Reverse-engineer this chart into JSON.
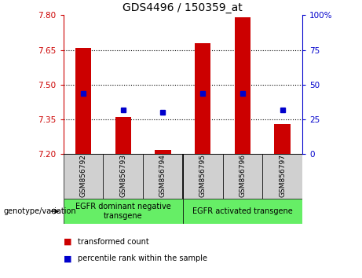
{
  "title": "GDS4496 / 150359_at",
  "samples": [
    "GSM856792",
    "GSM856793",
    "GSM856794",
    "GSM856795",
    "GSM856796",
    "GSM856797"
  ],
  "transformed_counts": [
    7.66,
    7.36,
    7.22,
    7.68,
    7.79,
    7.33
  ],
  "percentile_ranks": [
    44,
    32,
    30,
    44,
    44,
    32
  ],
  "ylim_left": [
    7.2,
    7.8
  ],
  "ylim_right": [
    0,
    100
  ],
  "yticks_left": [
    7.2,
    7.35,
    7.5,
    7.65,
    7.8
  ],
  "yticks_right": [
    0,
    25,
    50,
    75,
    100
  ],
  "bar_color": "#cc0000",
  "dot_color": "#0000cc",
  "bar_bottom": 7.2,
  "bar_width": 0.4,
  "groups": [
    {
      "label": "EGFR dominant negative\ntransgene",
      "n": 3,
      "color": "#66ee66"
    },
    {
      "label": "EGFR activated transgene",
      "n": 3,
      "color": "#66ee66"
    }
  ],
  "group_label": "genotype/variation",
  "legend_items": [
    {
      "label": "transformed count",
      "color": "#cc0000"
    },
    {
      "label": "percentile rank within the sample",
      "color": "#0000cc"
    }
  ],
  "title_fontsize": 10,
  "tick_fontsize": 7.5,
  "sample_fontsize": 6.5,
  "group_fontsize": 7,
  "legend_fontsize": 7
}
